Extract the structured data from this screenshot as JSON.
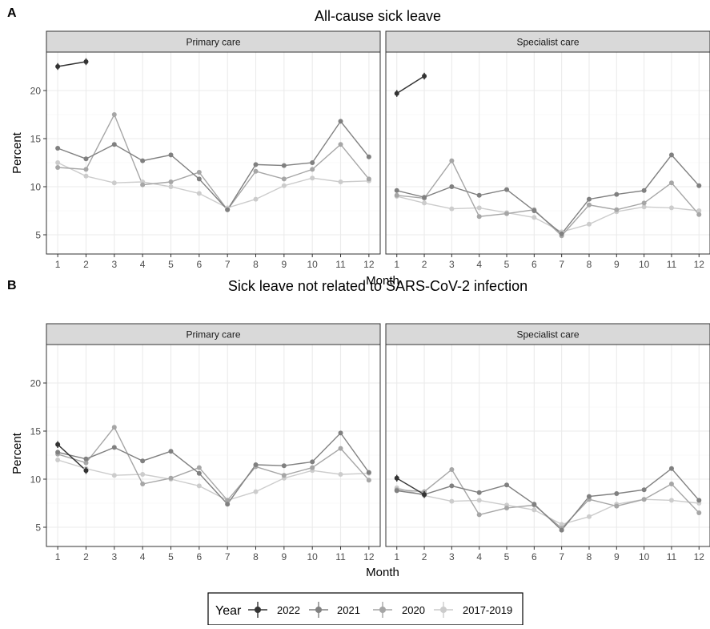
{
  "panels": [
    {
      "letter": "A",
      "title": "All-cause sick leave",
      "xlabel": "Month",
      "ylabel": "Percent",
      "facets": [
        {
          "strip": "Primary care",
          "series": [
            {
              "name": "2022",
              "values": [
                22.5,
                23.0
              ]
            },
            {
              "name": "2021",
              "values": [
                14.0,
                12.9,
                14.4,
                12.7,
                13.3,
                10.8,
                7.6,
                12.3,
                12.2,
                12.5,
                16.8,
                13.1
              ]
            },
            {
              "name": "2020",
              "values": [
                12.0,
                11.8,
                17.5,
                10.2,
                10.5,
                11.5,
                7.6,
                11.6,
                10.8,
                11.8,
                14.4,
                10.8
              ]
            },
            {
              "name": "2017-2019",
              "values": [
                12.5,
                11.1,
                10.4,
                10.5,
                10.0,
                9.3,
                7.8,
                8.7,
                10.1,
                10.9,
                10.5,
                10.6
              ]
            }
          ]
        },
        {
          "strip": "Specialist care",
          "series": [
            {
              "name": "2022",
              "values": [
                19.7,
                21.5
              ]
            },
            {
              "name": "2021",
              "values": [
                9.6,
                8.9,
                10.0,
                9.1,
                9.7,
                7.5,
                5.1,
                8.7,
                9.2,
                9.6,
                13.3,
                10.1
              ]
            },
            {
              "name": "2020",
              "values": [
                9.1,
                8.8,
                12.7,
                6.9,
                7.2,
                7.6,
                4.9,
                8.1,
                7.6,
                8.3,
                10.4,
                7.1
              ]
            },
            {
              "name": "2017-2019",
              "values": [
                9.0,
                8.3,
                7.7,
                7.8,
                7.3,
                6.8,
                5.3,
                6.1,
                7.4,
                7.9,
                7.8,
                7.5
              ]
            }
          ]
        }
      ]
    },
    {
      "letter": "B",
      "title": "Sick leave not related to SARS-CoV-2 infection",
      "xlabel": "Month",
      "ylabel": "Percent",
      "facets": [
        {
          "strip": "Primary care",
          "series": [
            {
              "name": "2022",
              "values": [
                13.6,
                10.9
              ]
            },
            {
              "name": "2021",
              "values": [
                12.8,
                12.1,
                13.3,
                11.9,
                12.9,
                10.6,
                7.4,
                11.5,
                11.4,
                11.8,
                14.8,
                10.7
              ]
            },
            {
              "name": "2020",
              "values": [
                12.6,
                11.7,
                15.4,
                9.5,
                10.1,
                11.2,
                7.8,
                11.3,
                10.4,
                11.2,
                13.2,
                9.9
              ]
            },
            {
              "name": "2017-2019",
              "values": [
                12.0,
                11.1,
                10.4,
                10.5,
                10.0,
                9.3,
                7.8,
                8.7,
                10.1,
                10.9,
                10.5,
                10.6
              ]
            }
          ]
        },
        {
          "strip": "Specialist care",
          "series": [
            {
              "name": "2022",
              "values": [
                10.1,
                8.4
              ]
            },
            {
              "name": "2021",
              "values": [
                8.8,
                8.4,
                9.3,
                8.6,
                9.4,
                7.4,
                4.7,
                8.2,
                8.5,
                8.9,
                11.1,
                7.8
              ]
            },
            {
              "name": "2020",
              "values": [
                8.9,
                8.7,
                11.0,
                6.3,
                7.0,
                7.3,
                4.9,
                7.9,
                7.2,
                7.9,
                9.5,
                6.5
              ]
            },
            {
              "name": "2017-2019",
              "values": [
                9.1,
                8.3,
                7.7,
                7.8,
                7.3,
                6.8,
                5.3,
                6.1,
                7.4,
                7.9,
                7.8,
                7.5
              ]
            }
          ]
        }
      ]
    }
  ],
  "legend": {
    "title": "Year",
    "items": [
      "2022",
      "2021",
      "2020",
      "2017-2019"
    ]
  },
  "colors": {
    "2022": "#333333",
    "2021": "#808080",
    "2020": "#a6a6a6",
    "2017-2019": "#cccccc",
    "strip_bg": "#d9d9d9",
    "grid_major": "#ebebeb",
    "grid_minor": "#f5f5f5"
  },
  "chart_data": {
    "type": "line",
    "x_ticks": [
      1,
      2,
      3,
      4,
      5,
      6,
      7,
      8,
      9,
      10,
      11,
      12
    ],
    "y_ticks": [
      5,
      10,
      15,
      20
    ],
    "ylim": [
      3,
      24
    ],
    "xlim": [
      0.6,
      12.4
    ],
    "grid": true,
    "legend_position": "bottom",
    "note": "Each series drawn with points, lines and vertical error bars for 2022"
  }
}
